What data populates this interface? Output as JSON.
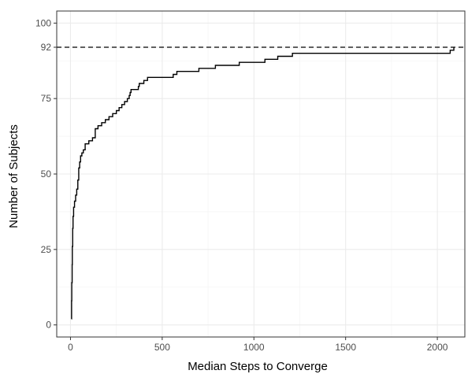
{
  "chart_data": {
    "type": "line",
    "step": true,
    "xlabel": "Median Steps to Converge",
    "ylabel": "Number of Subjects",
    "xlim": [
      -75,
      2150
    ],
    "ylim": [
      -4,
      104
    ],
    "x_ticks": [
      0,
      500,
      1000,
      1500,
      2000
    ],
    "y_ticks": [
      0,
      25,
      50,
      75,
      92,
      100
    ],
    "grid": true,
    "reference_line": {
      "y": 92,
      "style": "dashed"
    },
    "series": [
      {
        "points": [
          [
            5,
            2
          ],
          [
            6,
            8
          ],
          [
            7,
            14
          ],
          [
            9,
            20
          ],
          [
            10,
            26
          ],
          [
            12,
            32
          ],
          [
            14,
            36
          ],
          [
            17,
            39
          ],
          [
            22,
            41
          ],
          [
            28,
            43
          ],
          [
            34,
            45
          ],
          [
            40,
            48
          ],
          [
            45,
            52
          ],
          [
            50,
            54
          ],
          [
            55,
            56
          ],
          [
            62,
            57
          ],
          [
            70,
            58
          ],
          [
            80,
            60
          ],
          [
            100,
            61
          ],
          [
            120,
            62
          ],
          [
            135,
            65
          ],
          [
            150,
            66
          ],
          [
            170,
            67
          ],
          [
            190,
            68
          ],
          [
            210,
            69
          ],
          [
            230,
            70
          ],
          [
            250,
            71
          ],
          [
            265,
            72
          ],
          [
            280,
            73
          ],
          [
            295,
            74
          ],
          [
            310,
            75
          ],
          [
            320,
            76
          ],
          [
            325,
            77
          ],
          [
            330,
            78
          ],
          [
            370,
            79
          ],
          [
            375,
            80
          ],
          [
            400,
            81
          ],
          [
            420,
            82
          ],
          [
            560,
            83
          ],
          [
            580,
            84
          ],
          [
            700,
            85
          ],
          [
            790,
            86
          ],
          [
            920,
            87
          ],
          [
            1060,
            88
          ],
          [
            1130,
            89
          ],
          [
            1210,
            90
          ],
          [
            1400,
            90
          ],
          [
            2070,
            91
          ],
          [
            2090,
            92
          ]
        ]
      }
    ]
  }
}
